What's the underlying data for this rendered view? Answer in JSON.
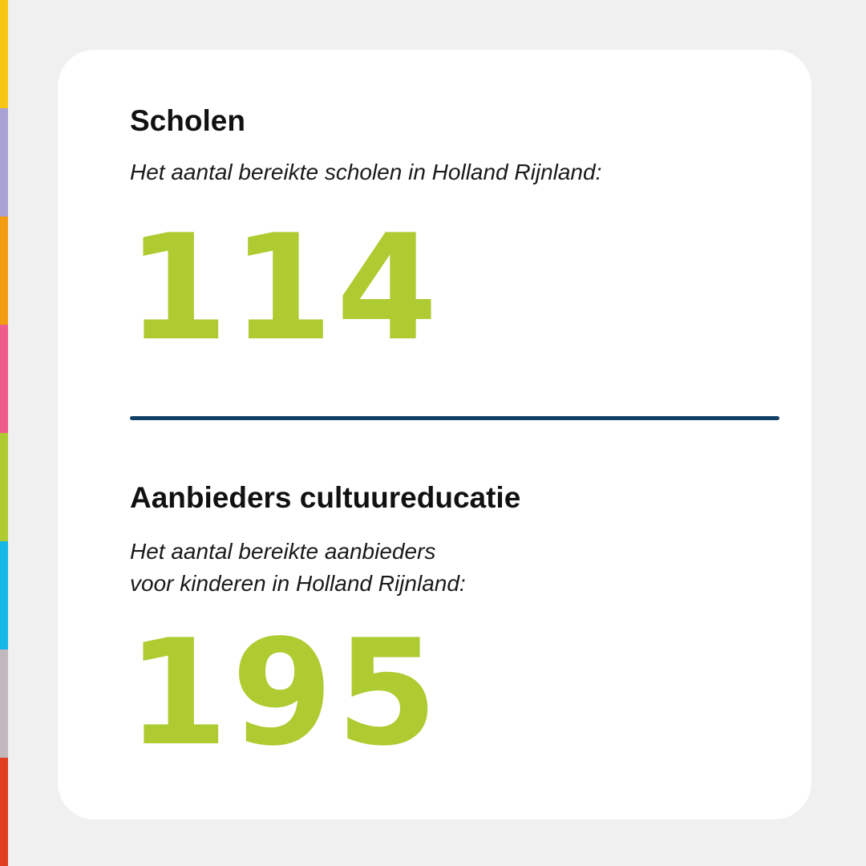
{
  "sections": [
    {
      "title": "Scholen",
      "description": [
        "Het aantal bereikte scholen in Holland Rijnland:"
      ],
      "number": 114
    },
    {
      "title": "Aanbieders cultuureducatie",
      "description": [
        "Het aantal bereikte aanbieders",
        "voor kinderen in Holland Rijnland:"
      ],
      "number": 195
    }
  ]
}
